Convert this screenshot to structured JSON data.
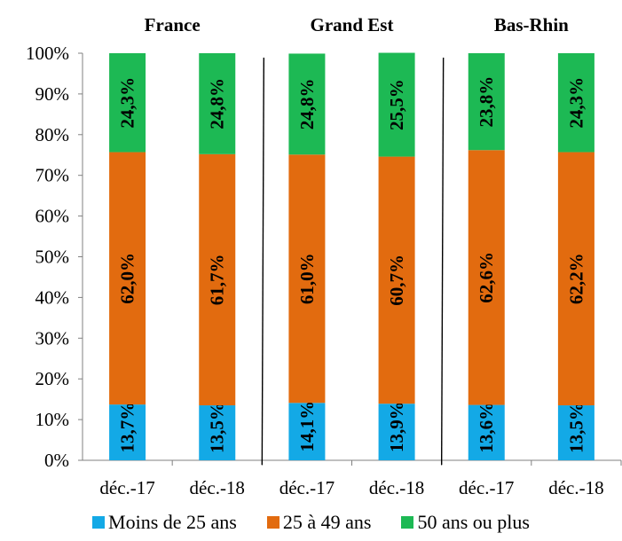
{
  "chart_data": {
    "type": "bar",
    "stacked": true,
    "percent": true,
    "groups": [
      {
        "title": "France",
        "categories": [
          "déc.-17",
          "déc.-18"
        ]
      },
      {
        "title": "Grand Est",
        "categories": [
          "déc.-17",
          "déc.-18"
        ]
      },
      {
        "title": "Bas-Rhin",
        "categories": [
          "déc.-17",
          "déc.-18"
        ]
      }
    ],
    "series": [
      {
        "name": "Moins de 25 ans",
        "color": "#13a9e6",
        "values": [
          13.7,
          13.5,
          14.1,
          13.9,
          13.6,
          13.5
        ],
        "labels": [
          "13,7%",
          "13,5%",
          "14,1%",
          "13,9%",
          "13,6%",
          "13,5%"
        ]
      },
      {
        "name": "25 à 49 ans",
        "color": "#e26b0f",
        "values": [
          62.0,
          61.7,
          61.0,
          60.7,
          62.6,
          62.2
        ],
        "labels": [
          "62,0%",
          "61,7%",
          "61,0%",
          "60,7%",
          "62,6%",
          "62,2%"
        ]
      },
      {
        "name": "50 ans ou plus",
        "color": "#1db954",
        "values": [
          24.3,
          24.8,
          24.8,
          25.5,
          23.8,
          24.3
        ],
        "labels": [
          "24,3%",
          "24,8%",
          "24,8%",
          "25,5%",
          "23,8%",
          "24,3%"
        ]
      }
    ],
    "ylim": [
      0,
      100
    ],
    "yticks": [
      "0%",
      "10%",
      "20%",
      "30%",
      "40%",
      "50%",
      "60%",
      "70%",
      "80%",
      "90%",
      "100%"
    ],
    "grid": false,
    "legend": "bottom"
  }
}
